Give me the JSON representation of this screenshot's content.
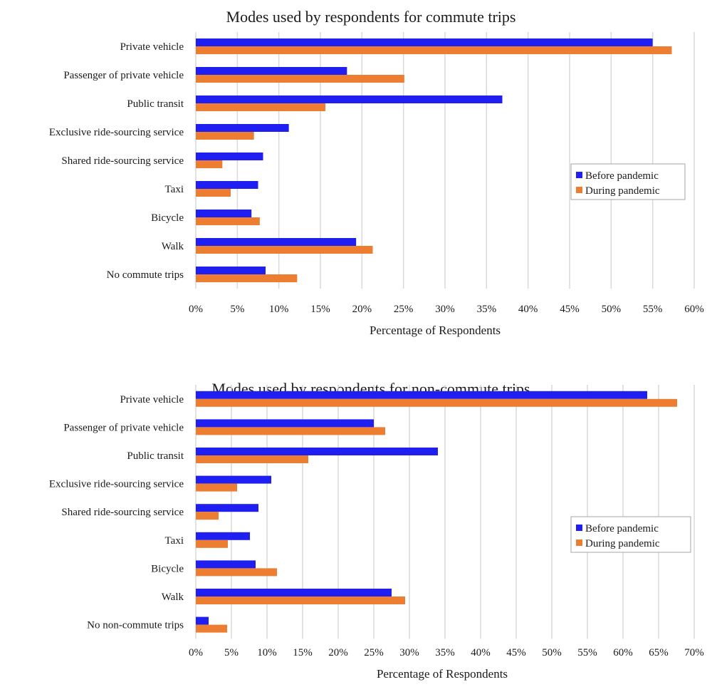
{
  "chart_data": [
    {
      "type": "bar",
      "orientation": "horizontal",
      "title": "Modes used by respondents for commute trips",
      "xlabel": "Percentage of Respondents",
      "ylabel": "",
      "categories": [
        "Private vehicle",
        "Passenger of private vehicle",
        "Public transit",
        "Exclusive ride-sourcing service",
        "Shared ride-sourcing service",
        "Taxi",
        "Bicycle",
        "Walk",
        "No commute trips"
      ],
      "series": [
        {
          "name": "Before pandemic",
          "color": "#1f1ff2",
          "values": [
            55,
            18.2,
            36.9,
            11.2,
            8.1,
            7.5,
            6.7,
            19.3,
            8.4
          ]
        },
        {
          "name": "During pandemic",
          "color": "#ed7d31",
          "values": [
            57.3,
            25.1,
            15.6,
            7.0,
            3.2,
            4.2,
            7.7,
            21.3,
            12.2
          ]
        }
      ],
      "xlim": [
        0,
        60
      ],
      "xticks": [
        0,
        5,
        10,
        15,
        20,
        25,
        30,
        35,
        40,
        45,
        50,
        55,
        60
      ],
      "xtick_labels": [
        "0%",
        "5%",
        "10%",
        "15%",
        "20%",
        "25%",
        "30%",
        "35%",
        "40%",
        "45%",
        "50%",
        "55%",
        "60%"
      ],
      "grid": "vertical",
      "legend": "center-right"
    },
    {
      "type": "bar",
      "orientation": "horizontal",
      "title": "Modes used by respondents for non-commute trips",
      "xlabel": "Percentage of Respondents",
      "ylabel": "",
      "categories": [
        "Private vehicle",
        "Passenger of private vehicle",
        "Public transit",
        "Exclusive ride-sourcing service",
        "Shared ride-sourcing service",
        "Taxi",
        "Bicycle",
        "Walk",
        "No non-commute trips"
      ],
      "series": [
        {
          "name": "Before pandemic",
          "color": "#1f1ff2",
          "values": [
            63.4,
            25.0,
            34.0,
            10.6,
            8.8,
            7.6,
            8.4,
            27.5,
            1.8
          ]
        },
        {
          "name": "During pandemic",
          "color": "#ed7d31",
          "values": [
            67.6,
            26.6,
            15.8,
            5.8,
            3.2,
            4.5,
            11.4,
            29.4,
            4.4
          ]
        }
      ],
      "xlim": [
        0,
        70
      ],
      "xticks": [
        0,
        5,
        10,
        15,
        20,
        25,
        30,
        35,
        40,
        45,
        50,
        55,
        60,
        65,
        70
      ],
      "xtick_labels": [
        "0%",
        "5%",
        "10%",
        "15%",
        "20%",
        "25%",
        "30%",
        "35%",
        "40%",
        "45%",
        "50%",
        "55%",
        "60%",
        "65%",
        "70%"
      ],
      "grid": "vertical",
      "legend": "center-right"
    }
  ]
}
